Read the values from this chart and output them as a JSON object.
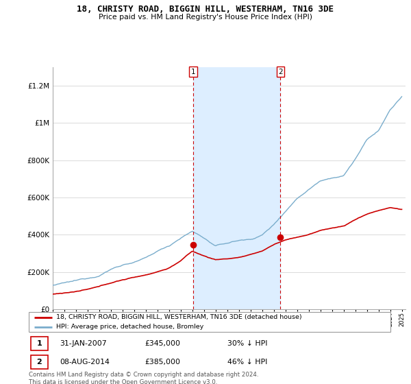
{
  "title": "18, CHRISTY ROAD, BIGGIN HILL, WESTERHAM, TN16 3DE",
  "subtitle": "Price paid vs. HM Land Registry's House Price Index (HPI)",
  "legend_label_red": "18, CHRISTY ROAD, BIGGIN HILL, WESTERHAM, TN16 3DE (detached house)",
  "legend_label_blue": "HPI: Average price, detached house, Bromley",
  "transaction1_date": "31-JAN-2007",
  "transaction1_price": "£345,000",
  "transaction1_hpi": "30% ↓ HPI",
  "transaction2_date": "08-AUG-2014",
  "transaction2_price": "£385,000",
  "transaction2_hpi": "46% ↓ HPI",
  "footer": "Contains HM Land Registry data © Crown copyright and database right 2024.\nThis data is licensed under the Open Government Licence v3.0.",
  "marker1_year": 2007.08,
  "marker1_value": 345000,
  "marker2_year": 2014.58,
  "marker2_value": 385000,
  "ylim_max": 1300000,
  "xlim_min": 1995,
  "xlim_max": 2025,
  "red_color": "#cc0000",
  "blue_color": "#7aadcc",
  "shaded_color": "#ddeeff",
  "background_color": "#ffffff",
  "grid_color": "#cccccc",
  "hpi_anchors_x": [
    1995,
    1996,
    1997,
    1998,
    1999,
    2000,
    2001,
    2002,
    2003,
    2004,
    2005,
    2006,
    2007,
    2008,
    2009,
    2010,
    2011,
    2012,
    2013,
    2014,
    2015,
    2016,
    2017,
    2018,
    2019,
    2020,
    2021,
    2022,
    2023,
    2024,
    2025
  ],
  "hpi_anchors_y": [
    128000,
    138000,
    148000,
    162000,
    180000,
    215000,
    240000,
    255000,
    275000,
    310000,
    340000,
    385000,
    420000,
    385000,
    340000,
    355000,
    370000,
    375000,
    400000,
    455000,
    530000,
    600000,
    650000,
    700000,
    720000,
    730000,
    820000,
    920000,
    970000,
    1080000,
    1150000
  ],
  "red_anchors_x": [
    1995,
    1996,
    1997,
    1998,
    1999,
    2000,
    2001,
    2002,
    2003,
    2004,
    2005,
    2006,
    2007,
    2008,
    2009,
    2010,
    2011,
    2012,
    2013,
    2014,
    2015,
    2016,
    2017,
    2018,
    2019,
    2020,
    2021,
    2022,
    2023,
    2024,
    2025
  ],
  "red_anchors_y": [
    80000,
    88000,
    95000,
    105000,
    118000,
    138000,
    155000,
    168000,
    182000,
    200000,
    220000,
    260000,
    310000,
    285000,
    265000,
    270000,
    278000,
    290000,
    310000,
    345000,
    370000,
    385000,
    400000,
    420000,
    435000,
    445000,
    480000,
    510000,
    530000,
    545000,
    535000
  ]
}
